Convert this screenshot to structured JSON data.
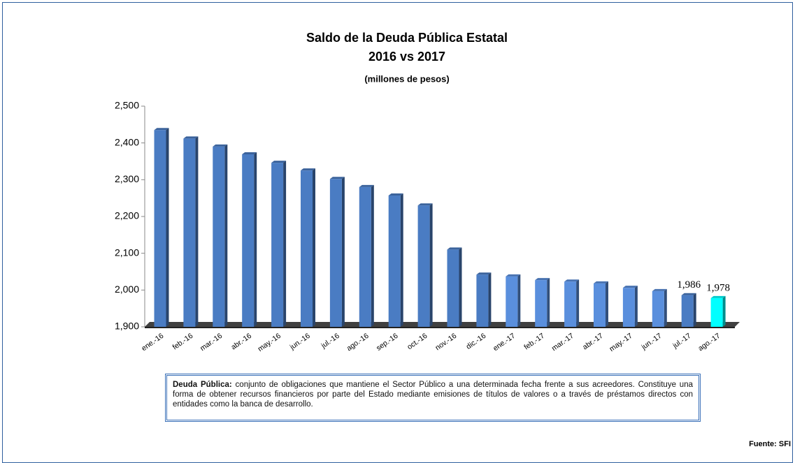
{
  "chart_data": {
    "type": "bar",
    "title": "Saldo de la Deuda Pública Estatal",
    "subtitle": "2016 vs 2017",
    "unit_label": "(millones de pesos)",
    "categories": [
      "ene.-16",
      "feb.-16",
      "mar.-16",
      "abr.-16",
      "may.-16",
      "jun.-16",
      "jul.-16",
      "ago.-16",
      "sep.-16",
      "oct.-16",
      "nov.-16",
      "dic.-16",
      "ene.-17",
      "feb.-17",
      "mar.-17",
      "abr.-17",
      "may.-17",
      "jun.-17",
      "jul.-17",
      "ago.-17"
    ],
    "values": [
      2435,
      2412,
      2390,
      2369,
      2346,
      2325,
      2302,
      2280,
      2257,
      2230,
      2110,
      2042,
      2037,
      2027,
      2023,
      2018,
      2006,
      1997,
      1986,
      1978
    ],
    "value_labels": [
      null,
      null,
      null,
      null,
      null,
      null,
      null,
      null,
      null,
      null,
      null,
      null,
      null,
      null,
      null,
      null,
      null,
      null,
      "1,986",
      "1,978"
    ],
    "colors": [
      "#4a7cc3",
      "#4a7cc3",
      "#4a7cc3",
      "#4a7cc3",
      "#4a7cc3",
      "#4a7cc3",
      "#4a7cc3",
      "#4a7cc3",
      "#4a7cc3",
      "#4a7cc3",
      "#4a7cc3",
      "#4a7cc3",
      "#5a8fdd",
      "#5a8fdd",
      "#5a8fdd",
      "#5a8fdd",
      "#5a8fdd",
      "#5a8fdd",
      "#4a7cc3",
      "#00ffff"
    ],
    "ylim": [
      1900,
      2500
    ],
    "yticks": [
      {
        "value": 1900,
        "label": "1,900"
      },
      {
        "value": 2000,
        "label": "2,000"
      },
      {
        "value": 2100,
        "label": "2,100"
      },
      {
        "value": 2200,
        "label": "2,200"
      },
      {
        "value": 2300,
        "label": "2,300"
      },
      {
        "value": 2400,
        "label": "2,400"
      },
      {
        "value": 2500,
        "label": "2,500"
      }
    ]
  },
  "note": {
    "term": "Deuda Pública:",
    "text": " conjunto de obligaciones que mantiene el Sector Público a una determinada fecha frente a sus acreedores. Constituye una forma de obtener recursos financieros por parte del Estado mediante emisiones de títulos de valores o a través de préstamos directos con entidades como la banca de desarrollo."
  },
  "source": "Fuente: SFI"
}
